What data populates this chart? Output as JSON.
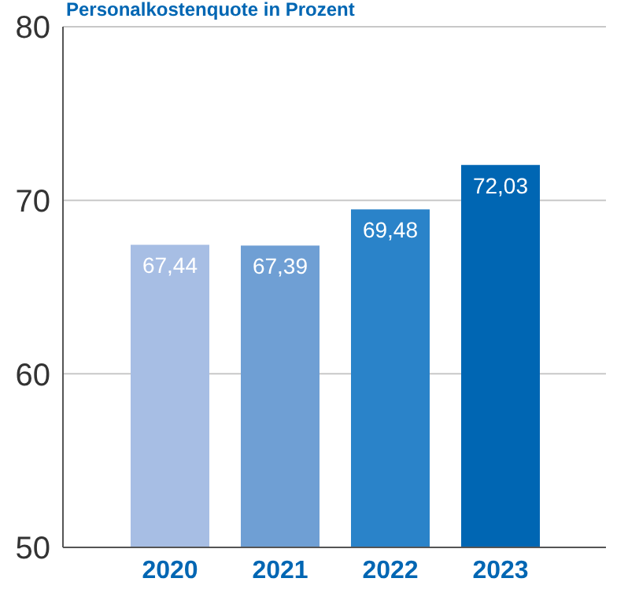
{
  "chart_data": {
    "type": "bar",
    "title": "Personalkostenquote in Prozent",
    "categories": [
      "2020",
      "2021",
      "2022",
      "2023"
    ],
    "values": [
      67.44,
      67.39,
      69.48,
      72.03
    ],
    "value_labels": [
      "67,44",
      "67,39",
      "69,48",
      "72,03"
    ],
    "colors": [
      "#a7bee4",
      "#6f9fd4",
      "#2a83c9",
      "#0066b3"
    ],
    "ylim": [
      50,
      80
    ],
    "yticks": [
      50,
      60,
      70,
      80
    ],
    "grid": "y"
  }
}
